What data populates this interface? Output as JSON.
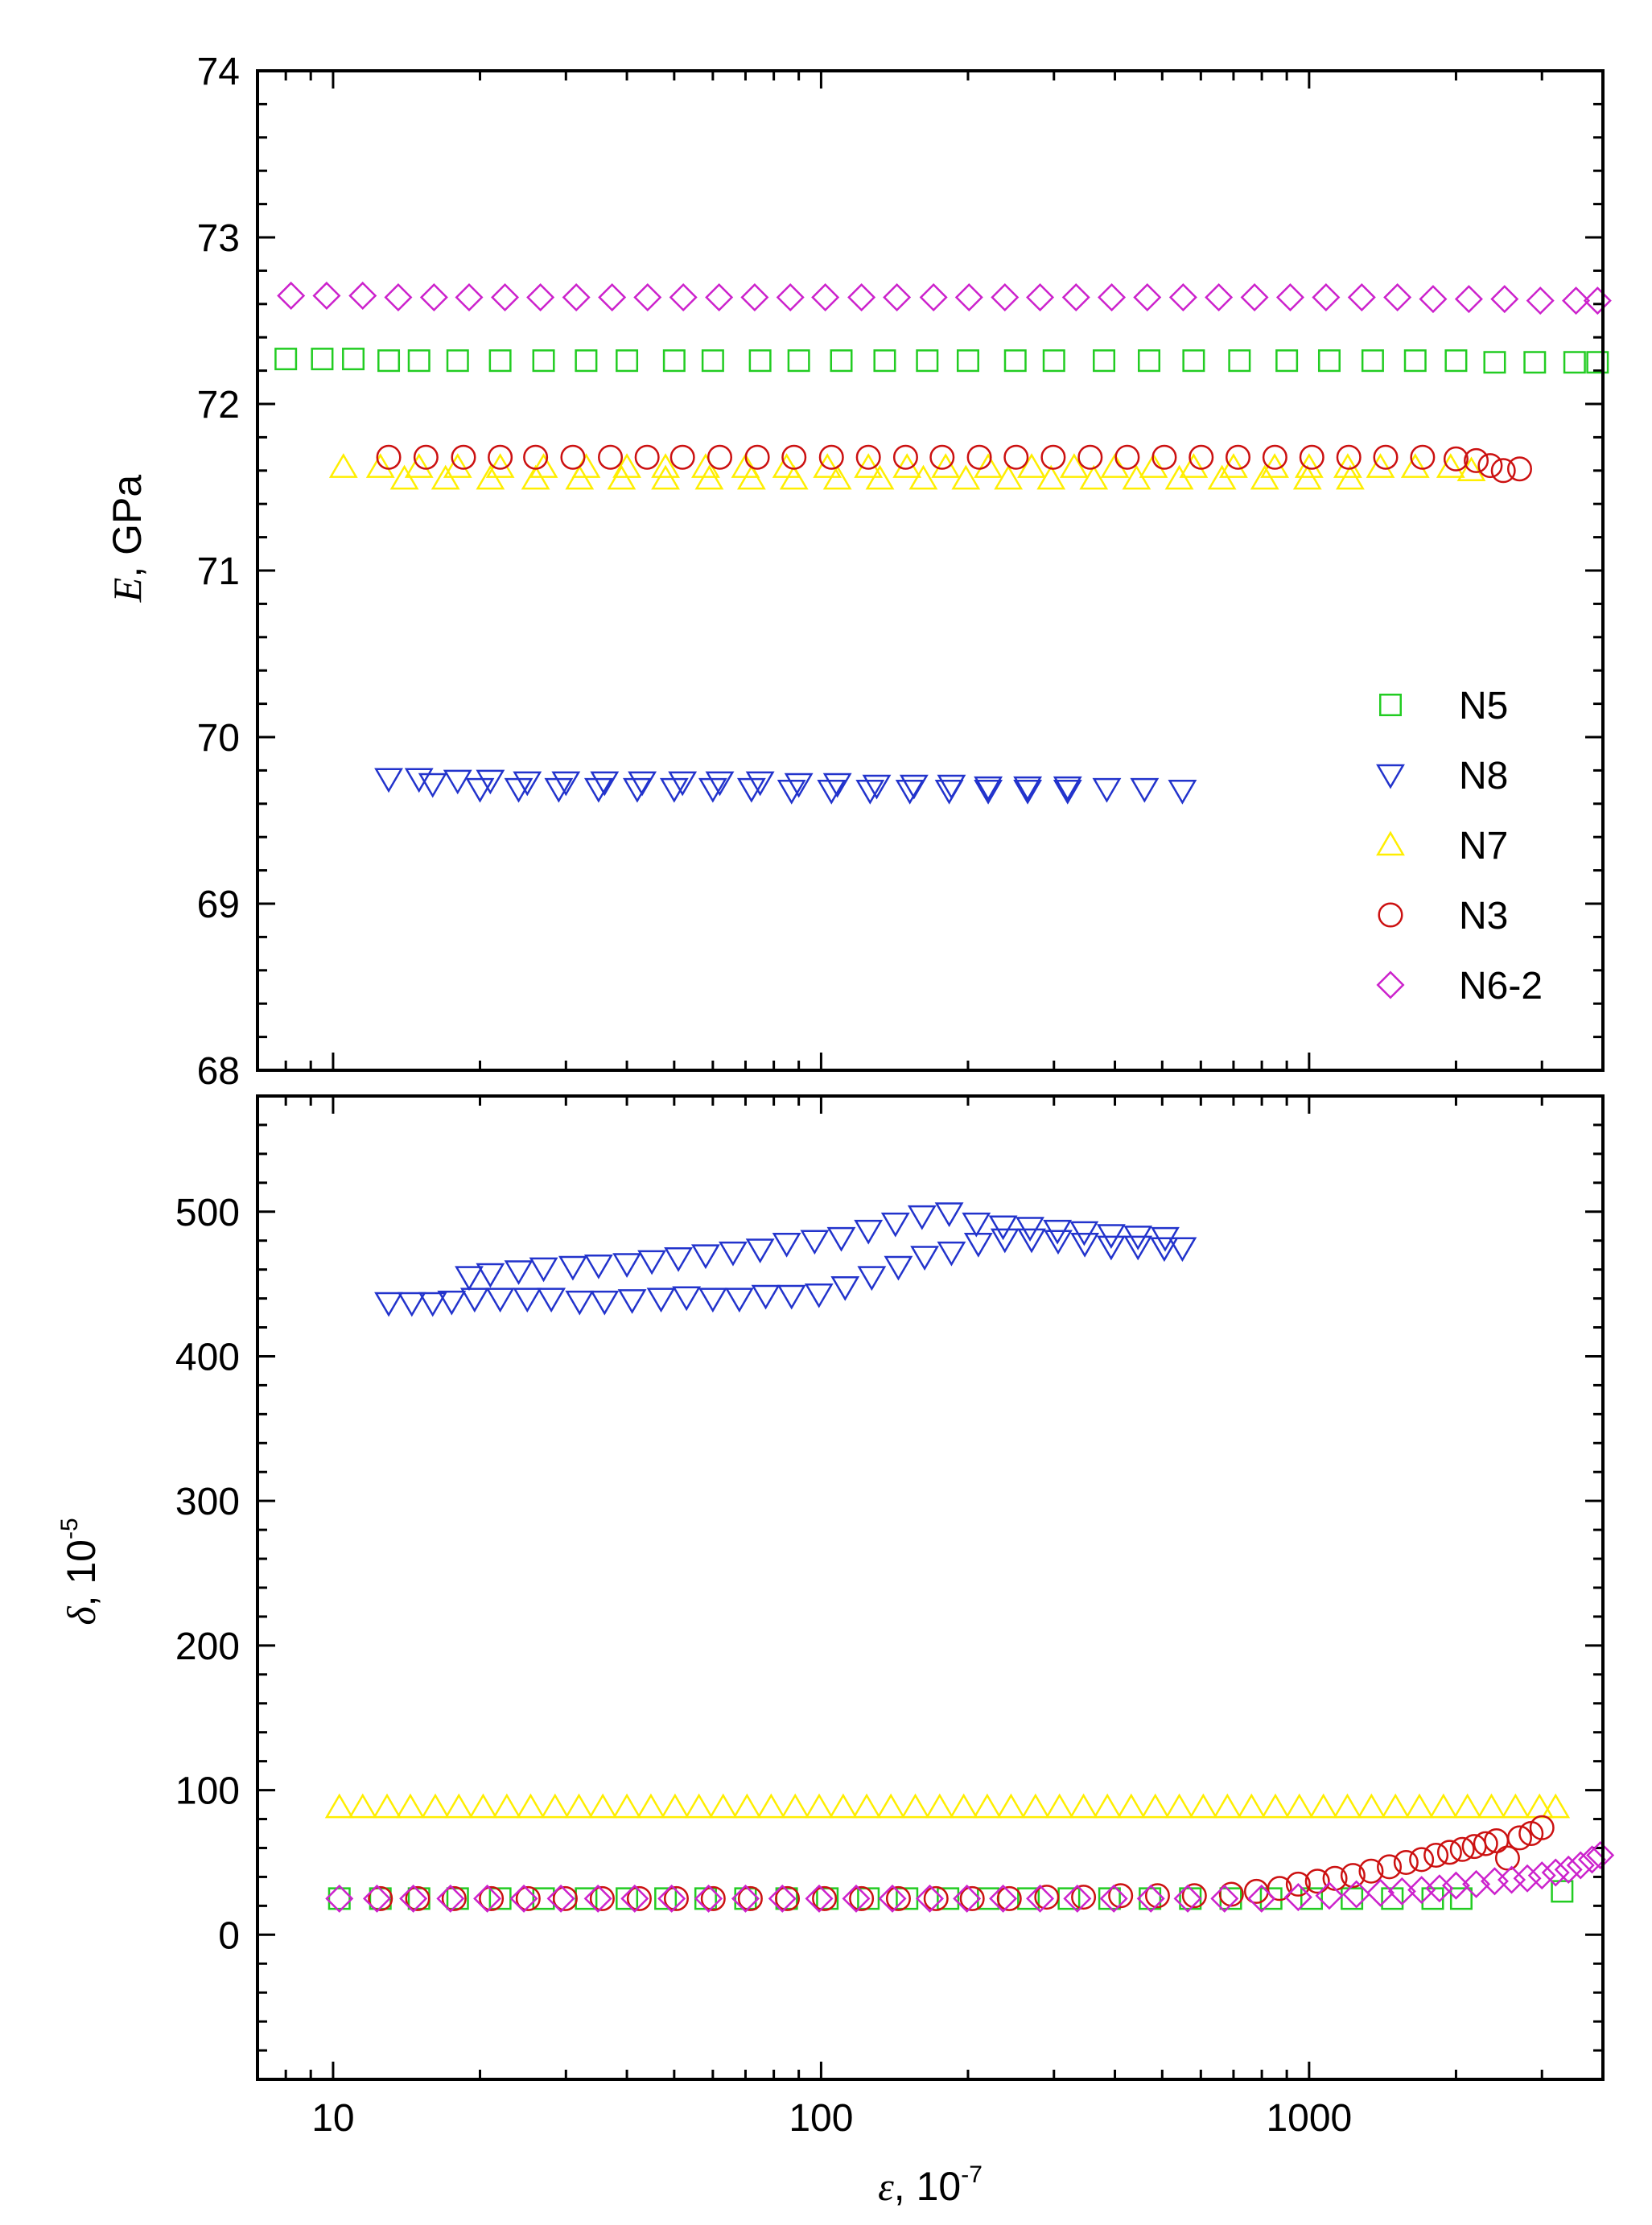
{
  "chart_data": [
    {
      "type": "scatter",
      "panel": "top",
      "xscale": "log",
      "xlim": [
        7,
        4000
      ],
      "ylim": [
        68,
        74
      ],
      "yticks": [
        68,
        69,
        70,
        71,
        72,
        73,
        74
      ],
      "ylabel": {
        "symbol": "E",
        "rest": ", GPa"
      },
      "legend": {
        "placement": "right"
      },
      "series": [
        {
          "name": "N5",
          "marker": "square",
          "color": "#22cc22",
          "x": [
            8,
            9.5,
            11,
            13,
            15,
            18,
            22,
            27,
            33,
            40,
            50,
            60,
            75,
            90,
            110,
            135,
            165,
            200,
            250,
            300,
            380,
            470,
            580,
            720,
            900,
            1100,
            1350,
            1650,
            2000,
            2400,
            2900,
            3500,
            3900
          ],
          "y": [
            72.27,
            72.27,
            72.27,
            72.26,
            72.26,
            72.26,
            72.26,
            72.26,
            72.26,
            72.26,
            72.26,
            72.26,
            72.26,
            72.26,
            72.26,
            72.26,
            72.26,
            72.26,
            72.26,
            72.26,
            72.26,
            72.26,
            72.26,
            72.26,
            72.26,
            72.26,
            72.26,
            72.26,
            72.26,
            72.25,
            72.25,
            72.25,
            72.25
          ]
        },
        {
          "name": "N8",
          "marker": "triangle-down",
          "color": "#2233cc",
          "x": [
            13,
            15,
            18,
            21,
            25,
            30,
            36,
            43,
            52,
            62,
            75,
            90,
            108,
            130,
            155,
            185,
            220,
            265,
            320,
            385,
            460,
            550,
            16,
            20,
            24,
            29,
            35,
            42,
            50,
            60,
            72,
            87,
            105,
            126,
            152,
            183,
            220,
            265,
            320
          ],
          "y": [
            69.75,
            69.75,
            69.74,
            69.74,
            69.73,
            69.73,
            69.73,
            69.73,
            69.73,
            69.73,
            69.73,
            69.72,
            69.72,
            69.71,
            69.71,
            69.71,
            69.7,
            69.7,
            69.7,
            69.69,
            69.69,
            69.68,
            69.72,
            69.69,
            69.69,
            69.69,
            69.69,
            69.69,
            69.69,
            69.69,
            69.69,
            69.68,
            69.68,
            69.68,
            69.68,
            69.68,
            69.68,
            69.68,
            69.68
          ]
        },
        {
          "name": "N7",
          "marker": "triangle-up",
          "color": "#ffee00",
          "x": [
            10.5,
            12.5,
            15,
            18,
            22,
            27,
            33,
            40,
            48,
            58,
            70,
            85,
            103,
            125,
            150,
            180,
            220,
            270,
            330,
            400,
            480,
            580,
            700,
            850,
            1000,
            1200,
            1400,
            1650,
            1950,
            2150,
            14,
            17,
            21,
            26,
            32,
            39,
            48,
            59,
            72,
            88,
            108,
            132,
            162,
            198,
            242,
            296,
            362,
            443,
            542,
            663,
            811,
            992,
            1214
          ],
          "y": [
            71.62,
            71.62,
            71.62,
            71.62,
            71.62,
            71.62,
            71.62,
            71.62,
            71.62,
            71.62,
            71.62,
            71.62,
            71.62,
            71.62,
            71.62,
            71.62,
            71.62,
            71.62,
            71.62,
            71.62,
            71.62,
            71.62,
            71.62,
            71.62,
            71.62,
            71.62,
            71.62,
            71.62,
            71.62,
            71.6,
            71.55,
            71.55,
            71.55,
            71.55,
            71.55,
            71.55,
            71.55,
            71.55,
            71.55,
            71.55,
            71.55,
            71.55,
            71.55,
            71.55,
            71.55,
            71.55,
            71.55,
            71.55,
            71.55,
            71.55,
            71.55,
            71.55,
            71.55
          ]
        },
        {
          "name": "N3",
          "marker": "circle",
          "color": "#cc1111",
          "x": [
            13,
            15.5,
            18.5,
            22,
            26,
            31,
            37,
            44,
            52,
            62,
            74,
            88,
            105,
            125,
            149,
            177,
            211,
            251,
            299,
            356,
            424,
            505,
            601,
            715,
            851,
            1013,
            1206,
            1435,
            1708,
            2000,
            2200,
            2350,
            2500,
            2700
          ],
          "y": [
            71.68,
            71.68,
            71.68,
            71.68,
            71.68,
            71.68,
            71.68,
            71.68,
            71.68,
            71.68,
            71.68,
            71.68,
            71.68,
            71.68,
            71.68,
            71.68,
            71.68,
            71.68,
            71.68,
            71.68,
            71.68,
            71.68,
            71.68,
            71.68,
            71.68,
            71.68,
            71.68,
            71.68,
            71.68,
            71.67,
            71.66,
            71.63,
            71.6,
            71.61
          ]
        },
        {
          "name": "N6-2",
          "marker": "diamond",
          "color": "#cc22cc",
          "x": [
            8.2,
            9.7,
            11.5,
            13.6,
            16.1,
            19,
            22.5,
            26.6,
            31.5,
            37.3,
            44.1,
            52.2,
            61.8,
            73.1,
            86.5,
            102,
            121,
            143,
            170,
            201,
            238,
            281,
            333,
            394,
            466,
            552,
            653,
            773,
            915,
            1083,
            1282,
            1517,
            1795,
            2125,
            2515,
            2977,
            3523,
            3900
          ],
          "y": [
            72.65,
            72.65,
            72.65,
            72.64,
            72.64,
            72.64,
            72.64,
            72.64,
            72.64,
            72.64,
            72.64,
            72.64,
            72.64,
            72.64,
            72.64,
            72.64,
            72.64,
            72.64,
            72.64,
            72.64,
            72.64,
            72.64,
            72.64,
            72.64,
            72.64,
            72.64,
            72.64,
            72.64,
            72.64,
            72.64,
            72.64,
            72.64,
            72.63,
            72.63,
            72.63,
            72.62,
            72.62,
            72.62
          ]
        }
      ]
    },
    {
      "type": "scatter",
      "panel": "bottom",
      "xscale": "log",
      "xlim": [
        7,
        4000
      ],
      "ylim": [
        -100,
        580
      ],
      "yticks": [
        0,
        100,
        200,
        300,
        400,
        500
      ],
      "xticks": [
        10,
        100,
        1000
      ],
      "ylabel": {
        "symbol": "δ",
        "rest": ", 10",
        "sup": "-5"
      },
      "xlabel": {
        "symbol": "ε",
        "rest": ", 10",
        "sup": "-7"
      },
      "series": [
        {
          "name": "N5",
          "marker": "square",
          "color": "#22cc22",
          "x": [
            10.3,
            12.5,
            15,
            18,
            22,
            27,
            33,
            40,
            48,
            58,
            70,
            85,
            103,
            125,
            150,
            182,
            220,
            266,
            322,
            390,
            472,
            571,
            691,
            836,
            1012,
            1224,
            1481,
            1792,
            2050,
            3300
          ],
          "y": [
            25,
            25,
            25,
            25,
            25,
            25,
            25,
            25,
            25,
            25,
            25,
            25,
            25,
            25,
            25,
            25,
            25,
            25,
            25,
            25,
            25,
            25,
            25,
            25,
            25,
            25,
            25,
            25,
            25,
            30
          ]
        },
        {
          "name": "N8",
          "marker": "triangle-down",
          "color": "#2233cc",
          "x": [
            13,
            14.5,
            16,
            17.5,
            19.5,
            22,
            25,
            28,
            32,
            36,
            41,
            47,
            53,
            60,
            68,
            77,
            87,
            99,
            112,
            127,
            144,
            163,
            185,
            210,
            238,
            270,
            306,
            347,
            393,
            446,
            505,
            550,
            19,
            21,
            24,
            27,
            31,
            35,
            40,
            45,
            51,
            58,
            66,
            75,
            85,
            97,
            110,
            125,
            142,
            161,
            183,
            208,
            236,
            268,
            305,
            346,
            393,
            446,
            507
          ],
          "y": [
            437,
            437,
            437,
            438,
            440,
            440,
            440,
            440,
            438,
            438,
            439,
            440,
            441,
            440,
            440,
            442,
            442,
            443,
            448,
            455,
            462,
            469,
            472,
            478,
            481,
            481,
            480,
            478,
            476,
            476,
            475,
            475,
            455,
            457,
            459,
            461,
            462,
            463,
            464,
            466,
            468,
            470,
            472,
            474,
            478,
            480,
            482,
            487,
            492,
            497,
            499,
            492,
            490,
            489,
            487,
            486,
            484,
            483,
            482
          ]
        },
        {
          "name": "N7",
          "marker": "triangle-up",
          "color": "#ffee00",
          "x": [
            10.3,
            11.5,
            12.9,
            14.4,
            16.2,
            18.1,
            20.3,
            22.7,
            25.4,
            28.5,
            31.9,
            35.7,
            40,
            44.8,
            50.2,
            56.2,
            63,
            70.5,
            79,
            88.5,
            99.1,
            111,
            124,
            139,
            156,
            175,
            196,
            219,
            245,
            275,
            308,
            345,
            386,
            432,
            484,
            542,
            607,
            680,
            762,
            853,
            955,
            1070,
            1198,
            1342,
            1503,
            1683,
            1885,
            2111,
            2364,
            2648,
            2966,
            3200
          ],
          "y": [
            88,
            88,
            88,
            88,
            88,
            88,
            88,
            88,
            88,
            88,
            88,
            88,
            88,
            88,
            88,
            88,
            88,
            88,
            88,
            88,
            88,
            88,
            88,
            88,
            88,
            88,
            88,
            88,
            88,
            88,
            88,
            88,
            88,
            88,
            88,
            88,
            88,
            88,
            88,
            88,
            88,
            88,
            88,
            88,
            88,
            88,
            88,
            88,
            88,
            88,
            88,
            88
          ]
        },
        {
          "name": "N3",
          "marker": "circle",
          "color": "#cc1111",
          "x": [
            12.5,
            14.9,
            17.7,
            21.1,
            25.1,
            29.9,
            35.6,
            42.4,
            50.5,
            60.1,
            71.6,
            85.3,
            101.6,
            121,
            144,
            172,
            204,
            243,
            290,
            345,
            411,
            489,
            582,
            693,
            780,
            870,
            950,
            1040,
            1130,
            1230,
            1340,
            1460,
            1580,
            1700,
            1820,
            1940,
            2060,
            2180,
            2300,
            2420,
            2550,
            2700,
            2850,
            3000
          ],
          "y": [
            25,
            25,
            25,
            25,
            25,
            25,
            25,
            25,
            25,
            25,
            25,
            25,
            25,
            25,
            25,
            25,
            25,
            25,
            26,
            26,
            27,
            27,
            27,
            28,
            30,
            32,
            35,
            37,
            39,
            41,
            44,
            47,
            50,
            52,
            55,
            57,
            59,
            61,
            63,
            65,
            53,
            67,
            70,
            74
          ]
        },
        {
          "name": "N6-2",
          "marker": "diamond",
          "color": "#cc22cc",
          "x": [
            10.3,
            12.3,
            14.6,
            17.4,
            20.7,
            24.6,
            29.3,
            34.9,
            41.5,
            49.4,
            58.8,
            70,
            83.3,
            99.1,
            118,
            140,
            167,
            199,
            236,
            281,
            335,
            398,
            474,
            564,
            671,
            799,
            950,
            1100,
            1250,
            1400,
            1550,
            1700,
            1850,
            2000,
            2200,
            2400,
            2600,
            2800,
            3000,
            3200,
            3400,
            3600,
            3800,
            3950
          ],
          "y": [
            25,
            25,
            25,
            25,
            25,
            25,
            25,
            25,
            25,
            25,
            25,
            25,
            25,
            25,
            25,
            25,
            25,
            25,
            25,
            25,
            25,
            25,
            25,
            25,
            25,
            25,
            26,
            27,
            28,
            29,
            30,
            31,
            32,
            34,
            35,
            37,
            38,
            39,
            41,
            43,
            45,
            48,
            52,
            55
          ]
        }
      ]
    }
  ]
}
